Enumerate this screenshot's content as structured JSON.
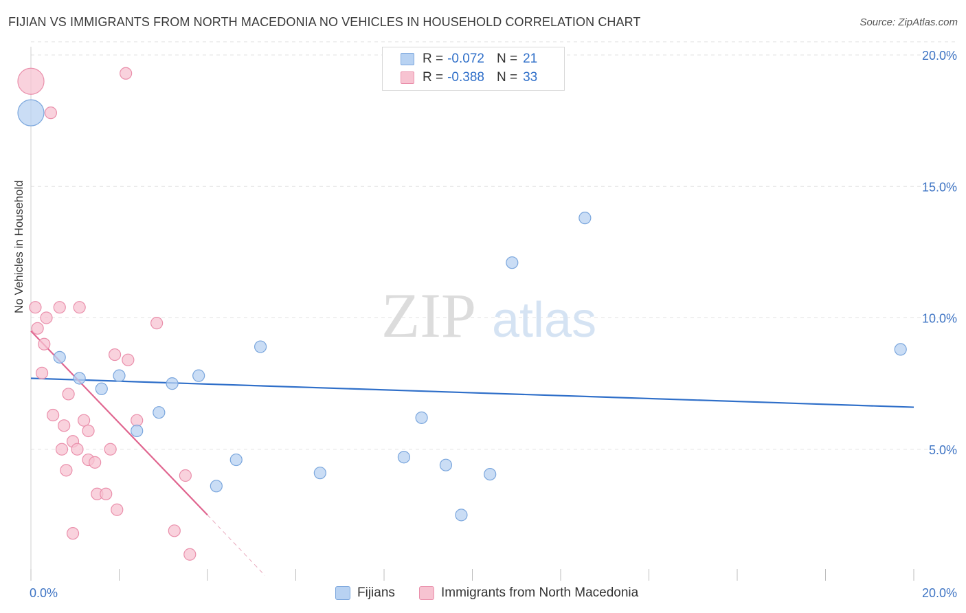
{
  "title": "FIJIAN VS IMMIGRANTS FROM NORTH MACEDONIA NO VEHICLES IN HOUSEHOLD CORRELATION CHART",
  "source": "Source: ZipAtlas.com",
  "watermark": {
    "zip": "ZIP",
    "atlas": "atlas"
  },
  "colors": {
    "blue_fill": "#b8d2f2",
    "blue_stroke": "#7aa6dd",
    "blue_line": "#2f6fc9",
    "pink_fill": "#f7c3d1",
    "pink_stroke": "#ea8fab",
    "pink_line": "#e0658f",
    "tick_label": "#3e74c4",
    "grid": "#e2e2e2"
  },
  "legend": {
    "rows": [
      {
        "r_label": "R =",
        "r_value": "-0.072",
        "n_label": "N =",
        "n_value": "21"
      },
      {
        "r_label": "R =",
        "r_value": "-0.388",
        "n_label": "N =",
        "n_value": "33"
      }
    ]
  },
  "chart_data": {
    "type": "scatter",
    "title": "FIJIAN VS IMMIGRANTS FROM NORTH MACEDONIA NO VEHICLES IN HOUSEHOLD CORRELATION CHART",
    "xlabel": "",
    "ylabel": "No Vehicles in Household",
    "xlim": [
      0,
      20
    ],
    "ylim": [
      0,
      20
    ],
    "x_tick_labels": [
      "0.0%",
      "20.0%"
    ],
    "y_ticks": [
      5,
      10,
      15,
      20
    ],
    "y_tick_labels": [
      "5.0%",
      "10.0%",
      "15.0%",
      "20.0%"
    ],
    "grid": true,
    "legend_position": "top-center",
    "series": [
      {
        "name": "Fijians",
        "color": "blue",
        "points": [
          {
            "x": 0.0,
            "y": 17.8,
            "size": "large"
          },
          {
            "x": 0.65,
            "y": 8.5
          },
          {
            "x": 1.1,
            "y": 7.7
          },
          {
            "x": 1.6,
            "y": 7.3
          },
          {
            "x": 2.0,
            "y": 7.8
          },
          {
            "x": 2.4,
            "y": 5.7
          },
          {
            "x": 2.9,
            "y": 6.4
          },
          {
            "x": 3.2,
            "y": 7.5
          },
          {
            "x": 3.8,
            "y": 7.8
          },
          {
            "x": 4.2,
            "y": 3.6
          },
          {
            "x": 4.65,
            "y": 4.6
          },
          {
            "x": 5.2,
            "y": 8.9
          },
          {
            "x": 6.55,
            "y": 4.1
          },
          {
            "x": 8.45,
            "y": 4.7
          },
          {
            "x": 8.85,
            "y": 6.2
          },
          {
            "x": 9.4,
            "y": 4.4
          },
          {
            "x": 9.75,
            "y": 2.5
          },
          {
            "x": 10.4,
            "y": 4.05
          },
          {
            "x": 10.9,
            "y": 12.1
          },
          {
            "x": 12.55,
            "y": 13.8
          },
          {
            "x": 19.7,
            "y": 8.8
          }
        ],
        "trend": {
          "x0": 0.0,
          "y0": 7.7,
          "x1": 20.0,
          "y1": 6.6
        }
      },
      {
        "name": "Immigrants from North Macedonia",
        "color": "pink",
        "points": [
          {
            "x": 0.0,
            "y": 19.0,
            "size": "large"
          },
          {
            "x": 2.15,
            "y": 19.3
          },
          {
            "x": 0.45,
            "y": 17.8
          },
          {
            "x": 0.1,
            "y": 10.4
          },
          {
            "x": 0.65,
            "y": 10.4
          },
          {
            "x": 1.1,
            "y": 10.4
          },
          {
            "x": 0.35,
            "y": 10.0
          },
          {
            "x": 0.15,
            "y": 9.6
          },
          {
            "x": 2.85,
            "y": 9.8
          },
          {
            "x": 0.3,
            "y": 9.0
          },
          {
            "x": 1.9,
            "y": 8.6
          },
          {
            "x": 2.2,
            "y": 8.4
          },
          {
            "x": 0.25,
            "y": 7.9
          },
          {
            "x": 0.85,
            "y": 7.1
          },
          {
            "x": 0.5,
            "y": 6.3
          },
          {
            "x": 1.2,
            "y": 6.1
          },
          {
            "x": 2.4,
            "y": 6.1
          },
          {
            "x": 0.75,
            "y": 5.9
          },
          {
            "x": 1.3,
            "y": 5.7
          },
          {
            "x": 0.95,
            "y": 5.3
          },
          {
            "x": 0.7,
            "y": 5.0
          },
          {
            "x": 1.05,
            "y": 5.0
          },
          {
            "x": 1.8,
            "y": 5.0
          },
          {
            "x": 1.3,
            "y": 4.6
          },
          {
            "x": 1.45,
            "y": 4.5
          },
          {
            "x": 0.8,
            "y": 4.2
          },
          {
            "x": 3.5,
            "y": 4.0
          },
          {
            "x": 1.5,
            "y": 3.3
          },
          {
            "x": 1.7,
            "y": 3.3
          },
          {
            "x": 1.95,
            "y": 2.7
          },
          {
            "x": 0.95,
            "y": 1.8
          },
          {
            "x": 3.25,
            "y": 1.9
          },
          {
            "x": 3.6,
            "y": 1.0
          }
        ],
        "trend": {
          "x0": 0.0,
          "y0": 9.5,
          "x1": 4.0,
          "y1": 2.5,
          "dashed_to_x": 5.3,
          "dashed_to_y": 0.2
        }
      }
    ]
  }
}
